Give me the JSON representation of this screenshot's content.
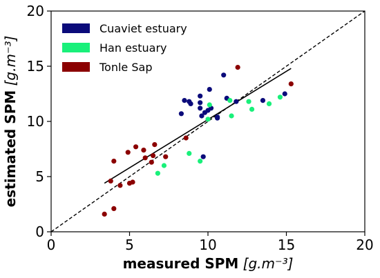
{
  "chart_data": {
    "type": "scatter",
    "xlabel_bold": "measured SPM",
    "xlabel_unit": "[g.m⁻³]",
    "ylabel_bold": "estimated SPM",
    "ylabel_unit": "[g.m⁻³]",
    "xlim": [
      0,
      20
    ],
    "ylim": [
      0,
      20
    ],
    "xticks": [
      "0",
      "5",
      "10",
      "15",
      "20"
    ],
    "yticks": [
      "0",
      "5",
      "10",
      "15",
      "20"
    ],
    "grid": false,
    "legend_position": "top-left",
    "reference_line": {
      "style": "dashed",
      "x": [
        0,
        20
      ],
      "y": [
        0,
        20
      ]
    },
    "fit_line": {
      "style": "solid",
      "x": [
        3.4,
        15.3
      ],
      "y": [
        4.4,
        14.8
      ]
    },
    "series": [
      {
        "name": "Cuaviet estuary",
        "color": "#0b0b7a",
        "points": [
          [
            8.3,
            10.7
          ],
          [
            8.5,
            11.9
          ],
          [
            8.8,
            11.8
          ],
          [
            8.9,
            11.6
          ],
          [
            9.5,
            12.3
          ],
          [
            9.5,
            11.7
          ],
          [
            9.5,
            11.2
          ],
          [
            9.6,
            10.5
          ],
          [
            9.8,
            10.8
          ],
          [
            10.0,
            11.0
          ],
          [
            10.1,
            12.9
          ],
          [
            10.2,
            11.2
          ],
          [
            10.6,
            10.3
          ],
          [
            10.6,
            10.4
          ],
          [
            11.0,
            14.2
          ],
          [
            11.2,
            12.1
          ],
          [
            11.8,
            11.8
          ],
          [
            13.5,
            11.9
          ],
          [
            14.9,
            12.5
          ],
          [
            9.7,
            6.8
          ]
        ]
      },
      {
        "name": "Han estuary",
        "color": "#19f07a",
        "points": [
          [
            6.8,
            5.3
          ],
          [
            7.2,
            6.0
          ],
          [
            8.8,
            7.1
          ],
          [
            9.5,
            6.4
          ],
          [
            10.0,
            10.2
          ],
          [
            10.1,
            11.5
          ],
          [
            11.5,
            10.5
          ],
          [
            11.4,
            11.9
          ],
          [
            12.6,
            11.8
          ],
          [
            12.8,
            11.1
          ],
          [
            13.9,
            11.6
          ],
          [
            14.6,
            12.2
          ]
        ]
      },
      {
        "name": "Tonle Sap",
        "color": "#8b0000",
        "points": [
          [
            3.4,
            1.6
          ],
          [
            3.8,
            4.6
          ],
          [
            4.0,
            6.4
          ],
          [
            4.0,
            2.1
          ],
          [
            4.4,
            4.2
          ],
          [
            4.9,
            7.2
          ],
          [
            5.0,
            4.4
          ],
          [
            5.2,
            4.5
          ],
          [
            5.4,
            7.7
          ],
          [
            5.9,
            7.4
          ],
          [
            6.0,
            6.7
          ],
          [
            6.4,
            6.3
          ],
          [
            6.5,
            6.9
          ],
          [
            6.6,
            7.9
          ],
          [
            7.3,
            6.8
          ],
          [
            8.6,
            8.5
          ],
          [
            11.9,
            14.9
          ],
          [
            15.3,
            13.4
          ]
        ]
      }
    ]
  }
}
